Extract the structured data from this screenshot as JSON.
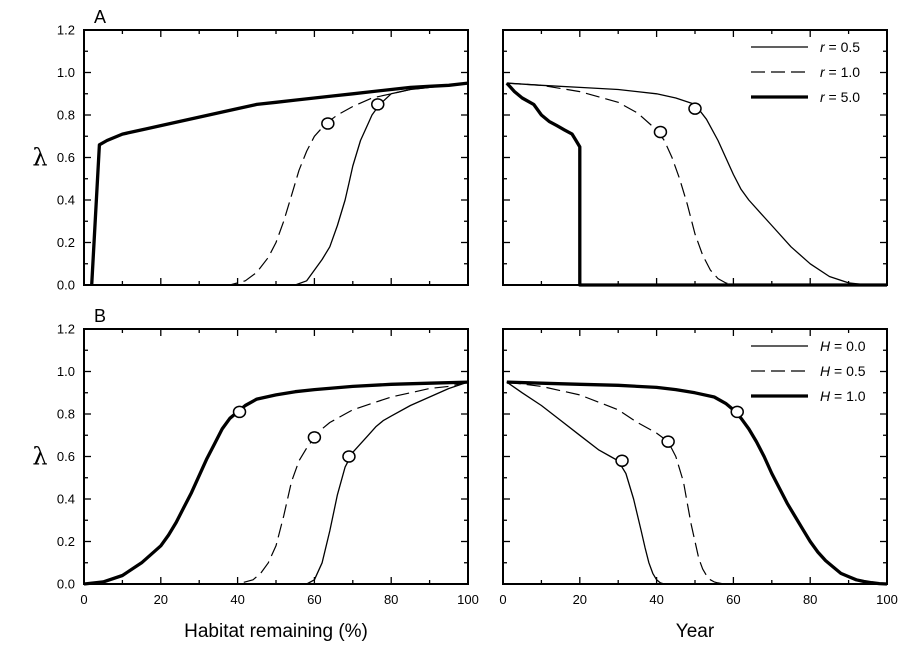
{
  "chart_data": [
    {
      "panel": "A",
      "type": "line",
      "xlabel": "",
      "ylabel": "λ",
      "xlim": [
        0,
        100
      ],
      "ylim": [
        0,
        1.2
      ],
      "xticks": [],
      "yticks": [
        "0.0",
        "0.2",
        "0.4",
        "0.6",
        "0.8",
        "1.0",
        "1.2"
      ],
      "legend": null,
      "series": [
        {
          "style": "thin",
          "x": [
            0,
            50,
            55,
            58,
            60,
            62,
            64,
            66,
            68,
            69,
            70,
            72,
            74,
            75,
            77,
            80,
            85,
            90,
            95,
            100
          ],
          "y": [
            0,
            0,
            0,
            0.02,
            0.07,
            0.12,
            0.18,
            0.28,
            0.4,
            0.48,
            0.56,
            0.68,
            0.76,
            0.8,
            0.85,
            0.9,
            0.92,
            0.93,
            0.94,
            0.95
          ]
        },
        {
          "style": "dashed",
          "x": [
            0,
            38,
            42,
            45,
            48,
            50,
            52,
            54,
            56,
            58,
            60,
            63,
            66,
            70,
            75,
            80,
            85,
            90,
            95,
            100
          ],
          "y": [
            0,
            0,
            0.02,
            0.06,
            0.13,
            0.2,
            0.3,
            0.42,
            0.54,
            0.63,
            0.7,
            0.76,
            0.8,
            0.84,
            0.88,
            0.9,
            0.92,
            0.93,
            0.94,
            0.95
          ]
        },
        {
          "style": "thick",
          "x": [
            2,
            4,
            6,
            10,
            15,
            20,
            25,
            30,
            35,
            40,
            45,
            50,
            55,
            60,
            65,
            70,
            75,
            80,
            85,
            90,
            95,
            100
          ],
          "y": [
            0,
            0.66,
            0.68,
            0.71,
            0.73,
            0.75,
            0.77,
            0.79,
            0.81,
            0.83,
            0.85,
            0.86,
            0.87,
            0.88,
            0.89,
            0.9,
            0.91,
            0.92,
            0.93,
            0.935,
            0.94,
            0.95
          ]
        }
      ],
      "markers": [
        {
          "x": 63.5,
          "y": 0.76
        },
        {
          "x": 76.5,
          "y": 0.85
        }
      ]
    },
    {
      "panel": "",
      "type": "line",
      "xlabel": "",
      "ylabel": "",
      "xlim": [
        0,
        100
      ],
      "ylim": [
        0,
        1.2
      ],
      "xticks": [],
      "yticks": [],
      "legend": {
        "position": "top-right",
        "entries": [
          {
            "var": "r",
            "label": " = 0.5",
            "style": "thin"
          },
          {
            "var": "r",
            "label": " = 1.0",
            "style": "dashed"
          },
          {
            "var": "r",
            "label": " = 5.0",
            "style": "thick"
          }
        ]
      },
      "series": [
        {
          "style": "thin",
          "x": [
            1,
            10,
            20,
            30,
            40,
            45,
            50,
            53,
            56,
            58,
            60,
            62,
            64,
            67,
            70,
            75,
            80,
            85,
            90,
            95,
            100
          ],
          "y": [
            0.95,
            0.94,
            0.93,
            0.92,
            0.9,
            0.88,
            0.85,
            0.78,
            0.68,
            0.6,
            0.52,
            0.45,
            0.4,
            0.34,
            0.28,
            0.18,
            0.1,
            0.04,
            0.01,
            0,
            0
          ]
        },
        {
          "style": "dashed",
          "x": [
            1,
            10,
            20,
            30,
            35,
            40,
            42,
            44,
            46,
            48,
            50,
            52,
            54,
            56,
            58,
            60,
            65,
            100
          ],
          "y": [
            0.95,
            0.94,
            0.91,
            0.86,
            0.81,
            0.73,
            0.68,
            0.6,
            0.5,
            0.38,
            0.24,
            0.14,
            0.07,
            0.03,
            0.01,
            0,
            0,
            0
          ]
        },
        {
          "style": "thick",
          "x": [
            1,
            3,
            5,
            8,
            10,
            12,
            14,
            16,
            18,
            19,
            20,
            20,
            100
          ],
          "y": [
            0.95,
            0.91,
            0.88,
            0.85,
            0.8,
            0.77,
            0.75,
            0.73,
            0.71,
            0.68,
            0.65,
            0,
            0
          ]
        }
      ],
      "markers": [
        {
          "x": 50,
          "y": 0.83
        },
        {
          "x": 41,
          "y": 0.72
        }
      ]
    },
    {
      "panel": "B",
      "type": "line",
      "xlabel": "Habitat remaining (%)",
      "ylabel": "λ",
      "xlim": [
        0,
        100
      ],
      "ylim": [
        0,
        1.2
      ],
      "xticks": [
        "0",
        "20",
        "40",
        "60",
        "80",
        "100"
      ],
      "yticks": [
        "0.0",
        "0.2",
        "0.4",
        "0.6",
        "0.8",
        "1.0",
        "1.2"
      ],
      "legend": null,
      "series": [
        {
          "style": "thin",
          "x": [
            0,
            55,
            58,
            60,
            62,
            64,
            66,
            68,
            70,
            72,
            74,
            76,
            78,
            80,
            85,
            90,
            95,
            100
          ],
          "y": [
            0,
            0,
            0,
            0.02,
            0.1,
            0.25,
            0.42,
            0.55,
            0.62,
            0.66,
            0.7,
            0.74,
            0.77,
            0.79,
            0.84,
            0.88,
            0.92,
            0.95
          ]
        },
        {
          "style": "dashed",
          "x": [
            0,
            40,
            44,
            46,
            48,
            50,
            52,
            54,
            56,
            58,
            60,
            62,
            64,
            66,
            68,
            70,
            75,
            80,
            85,
            90,
            95,
            100
          ],
          "y": [
            0,
            0,
            0.02,
            0.05,
            0.1,
            0.18,
            0.32,
            0.48,
            0.58,
            0.64,
            0.69,
            0.73,
            0.76,
            0.78,
            0.8,
            0.82,
            0.85,
            0.88,
            0.9,
            0.92,
            0.93,
            0.95
          ]
        },
        {
          "style": "thick",
          "x": [
            0,
            5,
            10,
            15,
            20,
            22,
            24,
            26,
            28,
            30,
            32,
            34,
            36,
            38,
            40,
            42,
            45,
            50,
            55,
            60,
            70,
            80,
            90,
            100
          ],
          "y": [
            0,
            0.01,
            0.04,
            0.1,
            0.18,
            0.23,
            0.29,
            0.36,
            0.43,
            0.51,
            0.59,
            0.66,
            0.73,
            0.78,
            0.81,
            0.84,
            0.87,
            0.89,
            0.905,
            0.915,
            0.93,
            0.94,
            0.945,
            0.95
          ]
        }
      ],
      "markers": [
        {
          "x": 40.5,
          "y": 0.81
        },
        {
          "x": 60,
          "y": 0.69
        },
        {
          "x": 69,
          "y": 0.6
        }
      ]
    },
    {
      "panel": "",
      "type": "line",
      "xlabel": "Year",
      "ylabel": "",
      "xlim": [
        0,
        100
      ],
      "ylim": [
        0,
        1.2
      ],
      "xticks": [
        "0",
        "20",
        "40",
        "60",
        "80",
        "100"
      ],
      "yticks": [],
      "legend": {
        "position": "top-right",
        "entries": [
          {
            "var": "H",
            "label": " = 0.0",
            "style": "thin"
          },
          {
            "var": "H",
            "label": " = 0.5",
            "style": "dashed"
          },
          {
            "var": "H",
            "label": " = 1.0",
            "style": "thick"
          }
        ]
      },
      "series": [
        {
          "style": "thin",
          "x": [
            1,
            5,
            10,
            15,
            20,
            25,
            28,
            30,
            32,
            34,
            36,
            37,
            38,
            39,
            40,
            41,
            42,
            100
          ],
          "y": [
            0.95,
            0.9,
            0.84,
            0.77,
            0.7,
            0.63,
            0.6,
            0.58,
            0.52,
            0.4,
            0.25,
            0.17,
            0.1,
            0.05,
            0.02,
            0.005,
            0,
            0
          ]
        },
        {
          "style": "dashed",
          "x": [
            1,
            10,
            20,
            30,
            35,
            40,
            43,
            45,
            47,
            48,
            49,
            50,
            51,
            52,
            53,
            54,
            55,
            56,
            57,
            58,
            100
          ],
          "y": [
            0.95,
            0.93,
            0.89,
            0.82,
            0.76,
            0.71,
            0.67,
            0.6,
            0.48,
            0.38,
            0.28,
            0.2,
            0.12,
            0.07,
            0.04,
            0.02,
            0.01,
            0.005,
            0.002,
            0,
            0
          ]
        },
        {
          "style": "thick",
          "x": [
            1,
            10,
            20,
            30,
            40,
            45,
            50,
            55,
            58,
            60,
            62,
            64,
            66,
            68,
            70,
            72,
            74,
            76,
            78,
            80,
            82,
            84,
            86,
            88,
            90,
            92,
            94,
            96,
            98,
            100
          ],
          "y": [
            0.95,
            0.945,
            0.94,
            0.935,
            0.925,
            0.915,
            0.9,
            0.88,
            0.85,
            0.82,
            0.78,
            0.73,
            0.67,
            0.6,
            0.52,
            0.45,
            0.38,
            0.32,
            0.26,
            0.2,
            0.15,
            0.11,
            0.08,
            0.05,
            0.035,
            0.02,
            0.012,
            0.006,
            0.002,
            0
          ]
        }
      ],
      "markers": [
        {
          "x": 31,
          "y": 0.58
        },
        {
          "x": 43,
          "y": 0.67
        },
        {
          "x": 61,
          "y": 0.81
        }
      ]
    }
  ]
}
